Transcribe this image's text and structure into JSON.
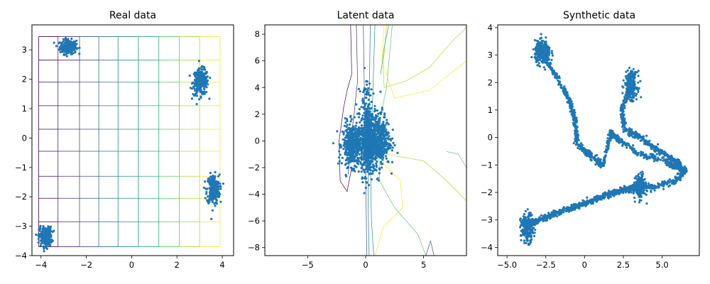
{
  "chart_data": [
    {
      "type": "scatter",
      "title": "Real data",
      "xlim": [
        -4.4,
        4.5
      ],
      "ylim": [
        -4.0,
        3.85
      ],
      "xticks": [
        -4,
        -2,
        0,
        2,
        4
      ],
      "yticks": [
        -4,
        -3,
        -2,
        -1,
        0,
        1,
        2,
        3
      ],
      "grid_lines": "viridis-colored deformed grid (vertical and horizontal lines) spanning x -4.1 to 3.9, y -3.7 to 3.5",
      "point_color": "#1f77b4",
      "clusters": [
        {
          "cx": -2.8,
          "cy": 3.1,
          "sx": 0.18,
          "sy": 0.12,
          "n": 260
        },
        {
          "cx": 3.05,
          "cy": 1.9,
          "sx": 0.17,
          "sy": 0.22,
          "n": 260
        },
        {
          "cx": 3.6,
          "cy": -1.75,
          "sx": 0.14,
          "sy": 0.25,
          "n": 260
        },
        {
          "cx": -3.8,
          "cy": -3.35,
          "sx": 0.14,
          "sy": 0.16,
          "n": 260
        }
      ]
    },
    {
      "type": "scatter",
      "title": "Latent data",
      "xlim": [
        -8.7,
        8.7
      ],
      "ylim": [
        -8.6,
        8.7
      ],
      "xticks": [
        -5,
        0,
        5
      ],
      "yticks": [
        -8,
        -6,
        -4,
        -2,
        0,
        2,
        4,
        6,
        8
      ],
      "contour_lines": "viridis-colored curved contour lines",
      "point_color": "#1f77b4",
      "clusters": [
        {
          "cx": -1.1,
          "cy": -0.3,
          "sx": 0.45,
          "sy": 0.8,
          "n": 500
        },
        {
          "cx": 0.2,
          "cy": 0.0,
          "sx": 0.3,
          "sy": 1.3,
          "n": 500
        },
        {
          "cx": 1.1,
          "cy": 0.1,
          "sx": 0.5,
          "sy": 1.0,
          "n": 500
        },
        {
          "cx": 0.0,
          "cy": 3.0,
          "sx": 0.2,
          "sy": 1.0,
          "n": 60
        }
      ]
    },
    {
      "type": "scatter",
      "title": "Synthetic data",
      "xlim": [
        -5.6,
        7.4
      ],
      "ylim": [
        -4.3,
        4.1
      ],
      "xticks": [
        -5.0,
        -2.5,
        0.0,
        2.5,
        5.0
      ],
      "yticks": [
        -4,
        -3,
        -2,
        -1,
        0,
        1,
        2,
        3,
        4
      ],
      "point_color": "#1f77b4",
      "clusters": [
        {
          "cx": -2.7,
          "cy": 3.1,
          "sx": 0.25,
          "sy": 0.2,
          "n": 300
        },
        {
          "cx": 3.0,
          "cy": 1.9,
          "sx": 0.2,
          "sy": 0.25,
          "n": 250
        },
        {
          "cx": 3.6,
          "cy": -1.8,
          "sx": 0.16,
          "sy": 0.2,
          "n": 250
        },
        {
          "cx": -3.7,
          "cy": -3.3,
          "sx": 0.2,
          "sy": 0.25,
          "n": 250
        }
      ],
      "trails": [
        {
          "points": [
            [
              -2.7,
              3.0
            ],
            [
              -1.8,
              2.2
            ],
            [
              -1.0,
              1.4
            ],
            [
              -0.6,
              0.6
            ],
            [
              -0.5,
              -0.2
            ],
            [
              0.2,
              -0.6
            ],
            [
              1.2,
              -1.0
            ],
            [
              1.7,
              0.2
            ],
            [
              2.2,
              -0.1
            ],
            [
              3.5,
              -0.6
            ],
            [
              5.0,
              -0.8
            ],
            [
              6.5,
              -1.2
            ],
            [
              5.8,
              -1.6
            ],
            [
              4.5,
              -1.8
            ],
            [
              3.6,
              -1.8
            ]
          ],
          "n": 900,
          "w": 0.06
        },
        {
          "points": [
            [
              3.0,
              1.9
            ],
            [
              2.4,
              1.0
            ],
            [
              2.6,
              0.3
            ],
            [
              3.6,
              0.0
            ],
            [
              4.8,
              -0.5
            ],
            [
              6.0,
              -0.9
            ],
            [
              6.2,
              -1.1
            ],
            [
              5.5,
              -1.0
            ]
          ],
          "n": 500,
          "w": 0.06
        },
        {
          "points": [
            [
              -3.7,
              -3.2
            ],
            [
              -2.5,
              -2.9
            ],
            [
              -1.0,
              -2.6
            ],
            [
              1.0,
              -2.2
            ],
            [
              2.5,
              -1.9
            ],
            [
              3.6,
              -1.8
            ]
          ],
          "n": 700,
          "w": 0.05
        }
      ]
    }
  ]
}
